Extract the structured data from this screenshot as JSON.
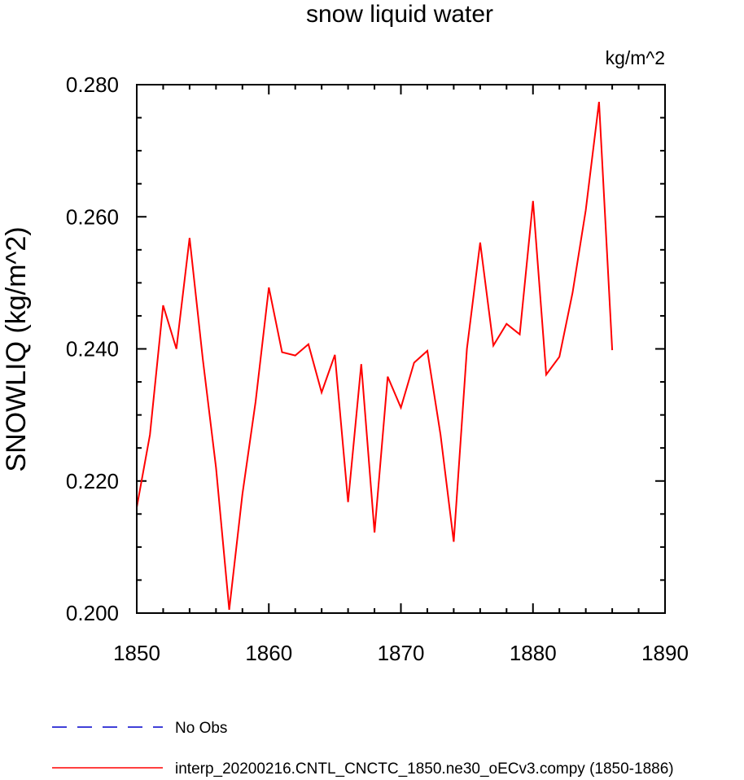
{
  "chart_data": {
    "type": "line",
    "title": "snow liquid water",
    "units": "kg/m^2",
    "xlabel": "",
    "ylabel": "SNOWLIQ  (kg/m^2)",
    "xlim": [
      1850,
      1890
    ],
    "ylim": [
      0.2,
      0.28
    ],
    "x_ticks": [
      1850,
      1860,
      1870,
      1880,
      1890
    ],
    "y_ticks": [
      0.2,
      0.22,
      0.24,
      0.26,
      0.28
    ],
    "x_tick_labels": [
      "1850",
      "1860",
      "1870",
      "1880",
      "1890"
    ],
    "y_tick_labels": [
      "0.200",
      "0.220",
      "0.240",
      "0.260",
      "0.280"
    ],
    "grid": false,
    "legend_placement": "bottom",
    "series": [
      {
        "name": "interp_20200216.CNTL_CNCTC_1850.ne30_oECv3.compy (1850-1886)",
        "color": "#ff0000",
        "style": "solid",
        "x": [
          1850,
          1851,
          1852,
          1853,
          1854,
          1855,
          1856,
          1857,
          1858,
          1859,
          1860,
          1861,
          1862,
          1863,
          1864,
          1865,
          1866,
          1867,
          1868,
          1869,
          1870,
          1871,
          1872,
          1873,
          1874,
          1875,
          1876,
          1877,
          1878,
          1879,
          1880,
          1881,
          1882,
          1883,
          1884,
          1885,
          1886
        ],
        "y": [
          0.216,
          0.227,
          0.2466,
          0.24,
          0.2568,
          0.2385,
          0.222,
          0.2005,
          0.218,
          0.232,
          0.2493,
          0.2395,
          0.239,
          0.2407,
          0.2334,
          0.2391,
          0.2168,
          0.2377,
          0.2122,
          0.2358,
          0.2311,
          0.2379,
          0.2397,
          0.227,
          0.2108,
          0.24,
          0.2561,
          0.2405,
          0.2438,
          0.2422,
          0.2624,
          0.2361,
          0.2388,
          0.2485,
          0.261,
          0.2774,
          0.2398
        ]
      }
    ],
    "legend": [
      {
        "label": "No Obs",
        "color": "#0000cc",
        "style": "dashed"
      },
      {
        "label": "interp_20200216.CNTL_CNCTC_1850.ne30_oECv3.compy (1850-1886)",
        "color": "#ff0000",
        "style": "solid"
      }
    ]
  }
}
